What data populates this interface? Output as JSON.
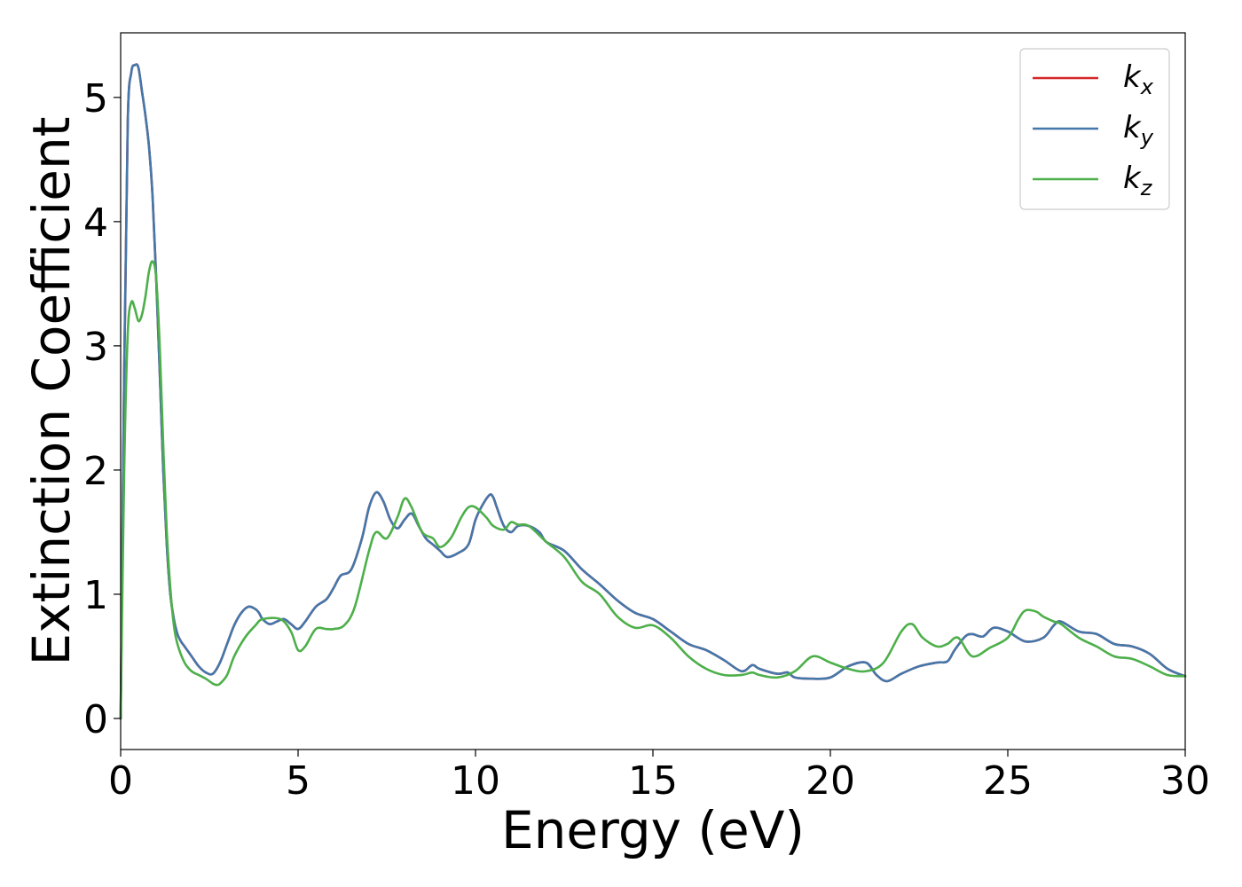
{
  "chart_data": {
    "type": "line",
    "xlabel": "Energy (eV)",
    "ylabel": "Extinction Coefficient",
    "xlim": [
      0,
      30
    ],
    "ylim": [
      -0.25,
      5.52
    ],
    "xticks": [
      "0",
      "5",
      "10",
      "15",
      "20",
      "25",
      "30"
    ],
    "yticks": [
      "0",
      "1",
      "2",
      "3",
      "4",
      "5"
    ],
    "grid": false,
    "legend_position": "top-right",
    "series": [
      {
        "name": "k_x",
        "legend_base": "k",
        "legend_sub": "x",
        "color": "#d62728",
        "x": [
          0,
          0.1,
          0.2,
          0.3,
          0.4,
          0.5,
          0.6,
          0.7,
          0.8,
          0.9,
          1.0,
          1.1,
          1.2,
          1.3,
          1.4,
          1.5,
          1.6,
          1.7,
          1.8,
          2.0,
          2.2,
          2.4,
          2.6,
          2.8,
          3.0,
          3.2,
          3.4,
          3.6,
          3.8,
          3.9,
          4.0,
          4.2,
          4.4,
          4.6,
          4.8,
          5.0,
          5.2,
          5.5,
          5.8,
          6.0,
          6.2,
          6.5,
          6.8,
          7.0,
          7.2,
          7.4,
          7.6,
          7.8,
          8.0,
          8.2,
          8.4,
          8.6,
          8.8,
          9.0,
          9.2,
          9.5,
          9.8,
          10.0,
          10.2,
          10.4,
          10.5,
          10.6,
          10.8,
          11.0,
          11.2,
          11.5,
          11.8,
          12.0,
          12.5,
          13.0,
          13.5,
          14.0,
          14.5,
          15.0,
          15.5,
          16.0,
          16.5,
          17.0,
          17.5,
          17.8,
          18.0,
          18.5,
          18.8,
          19.0,
          19.5,
          20.0,
          20.5,
          21.0,
          21.3,
          21.6,
          22.0,
          22.5,
          23.0,
          23.3,
          23.5,
          23.8,
          24.0,
          24.3,
          24.6,
          25.0,
          25.5,
          26.0,
          26.3,
          26.5,
          27.0,
          27.5,
          28.0,
          28.5,
          29.0,
          29.5,
          30.0
        ],
        "y": [
          0,
          2.8,
          4.8,
          5.2,
          5.26,
          5.24,
          5.05,
          4.85,
          4.6,
          4.2,
          3.55,
          2.8,
          2.0,
          1.4,
          1.0,
          0.8,
          0.68,
          0.62,
          0.58,
          0.5,
          0.42,
          0.37,
          0.36,
          0.45,
          0.6,
          0.75,
          0.85,
          0.9,
          0.88,
          0.85,
          0.8,
          0.76,
          0.78,
          0.8,
          0.76,
          0.72,
          0.78,
          0.9,
          0.96,
          1.05,
          1.15,
          1.2,
          1.45,
          1.7,
          1.82,
          1.75,
          1.6,
          1.53,
          1.6,
          1.65,
          1.55,
          1.45,
          1.4,
          1.35,
          1.3,
          1.33,
          1.4,
          1.6,
          1.72,
          1.8,
          1.78,
          1.7,
          1.55,
          1.5,
          1.55,
          1.55,
          1.5,
          1.42,
          1.35,
          1.2,
          1.08,
          0.95,
          0.85,
          0.8,
          0.7,
          0.6,
          0.55,
          0.47,
          0.38,
          0.43,
          0.4,
          0.36,
          0.37,
          0.33,
          0.32,
          0.33,
          0.42,
          0.45,
          0.35,
          0.3,
          0.36,
          0.42,
          0.45,
          0.46,
          0.55,
          0.66,
          0.68,
          0.66,
          0.73,
          0.7,
          0.62,
          0.65,
          0.75,
          0.78,
          0.7,
          0.68,
          0.6,
          0.58,
          0.52,
          0.4,
          0.34
        ]
      },
      {
        "name": "k_y",
        "legend_base": "k",
        "legend_sub": "y",
        "color": "#4477aa",
        "x": [
          0,
          0.1,
          0.2,
          0.3,
          0.4,
          0.5,
          0.6,
          0.7,
          0.8,
          0.9,
          1.0,
          1.1,
          1.2,
          1.3,
          1.4,
          1.5,
          1.6,
          1.7,
          1.8,
          2.0,
          2.2,
          2.4,
          2.6,
          2.8,
          3.0,
          3.2,
          3.4,
          3.6,
          3.8,
          3.9,
          4.0,
          4.2,
          4.4,
          4.6,
          4.8,
          5.0,
          5.2,
          5.5,
          5.8,
          6.0,
          6.2,
          6.5,
          6.8,
          7.0,
          7.2,
          7.4,
          7.6,
          7.8,
          8.0,
          8.2,
          8.4,
          8.6,
          8.8,
          9.0,
          9.2,
          9.5,
          9.8,
          10.0,
          10.2,
          10.4,
          10.5,
          10.6,
          10.8,
          11.0,
          11.2,
          11.5,
          11.8,
          12.0,
          12.5,
          13.0,
          13.5,
          14.0,
          14.5,
          15.0,
          15.5,
          16.0,
          16.5,
          17.0,
          17.5,
          17.8,
          18.0,
          18.5,
          18.8,
          19.0,
          19.5,
          20.0,
          20.5,
          21.0,
          21.3,
          21.6,
          22.0,
          22.5,
          23.0,
          23.3,
          23.5,
          23.8,
          24.0,
          24.3,
          24.6,
          25.0,
          25.5,
          26.0,
          26.3,
          26.5,
          27.0,
          27.5,
          28.0,
          28.5,
          29.0,
          29.5,
          30.0
        ],
        "y": [
          0,
          2.8,
          4.8,
          5.2,
          5.26,
          5.24,
          5.05,
          4.85,
          4.6,
          4.2,
          3.55,
          2.8,
          2.0,
          1.4,
          1.0,
          0.8,
          0.68,
          0.62,
          0.58,
          0.5,
          0.42,
          0.37,
          0.36,
          0.45,
          0.6,
          0.75,
          0.85,
          0.9,
          0.88,
          0.85,
          0.8,
          0.76,
          0.78,
          0.8,
          0.76,
          0.72,
          0.78,
          0.9,
          0.96,
          1.05,
          1.15,
          1.2,
          1.45,
          1.7,
          1.82,
          1.75,
          1.6,
          1.53,
          1.6,
          1.65,
          1.55,
          1.45,
          1.4,
          1.35,
          1.3,
          1.33,
          1.4,
          1.6,
          1.72,
          1.8,
          1.78,
          1.7,
          1.55,
          1.5,
          1.55,
          1.55,
          1.5,
          1.42,
          1.35,
          1.2,
          1.08,
          0.95,
          0.85,
          0.8,
          0.7,
          0.6,
          0.55,
          0.47,
          0.38,
          0.43,
          0.4,
          0.36,
          0.37,
          0.33,
          0.32,
          0.33,
          0.42,
          0.45,
          0.35,
          0.3,
          0.36,
          0.42,
          0.45,
          0.46,
          0.55,
          0.66,
          0.68,
          0.66,
          0.73,
          0.7,
          0.62,
          0.65,
          0.75,
          0.78,
          0.7,
          0.68,
          0.6,
          0.58,
          0.52,
          0.4,
          0.34
        ]
      },
      {
        "name": "k_z",
        "legend_base": "k",
        "legend_sub": "z",
        "color": "#4daf4a",
        "x": [
          0,
          0.1,
          0.2,
          0.3,
          0.4,
          0.5,
          0.6,
          0.7,
          0.8,
          0.9,
          1.0,
          1.1,
          1.2,
          1.3,
          1.4,
          1.5,
          1.6,
          1.8,
          2.0,
          2.2,
          2.4,
          2.6,
          2.7,
          2.8,
          3.0,
          3.2,
          3.5,
          3.8,
          4.0,
          4.5,
          4.8,
          5.0,
          5.2,
          5.5,
          5.8,
          6.0,
          6.3,
          6.6,
          7.0,
          7.2,
          7.5,
          7.8,
          8.0,
          8.2,
          8.5,
          8.8,
          9.0,
          9.3,
          9.6,
          9.8,
          10.0,
          10.3,
          10.5,
          10.8,
          11.0,
          11.2,
          11.5,
          12.0,
          12.5,
          13.0,
          13.5,
          14.0,
          14.5,
          15.0,
          15.5,
          16.0,
          16.5,
          17.0,
          17.5,
          17.8,
          18.0,
          18.5,
          19.0,
          19.5,
          20.0,
          20.5,
          21.0,
          21.5,
          22.0,
          22.3,
          22.6,
          23.0,
          23.3,
          23.6,
          24.0,
          24.5,
          25.0,
          25.3,
          25.5,
          25.8,
          26.0,
          26.3,
          26.5,
          27.0,
          27.5,
          28.0,
          28.5,
          29.0,
          29.5,
          30.0
        ],
        "y": [
          0,
          2.0,
          3.1,
          3.35,
          3.3,
          3.2,
          3.25,
          3.4,
          3.6,
          3.68,
          3.55,
          3.0,
          2.2,
          1.5,
          1.05,
          0.75,
          0.6,
          0.45,
          0.38,
          0.35,
          0.32,
          0.28,
          0.27,
          0.28,
          0.35,
          0.5,
          0.65,
          0.75,
          0.8,
          0.8,
          0.7,
          0.55,
          0.58,
          0.72,
          0.72,
          0.72,
          0.75,
          0.9,
          1.35,
          1.5,
          1.45,
          1.62,
          1.77,
          1.7,
          1.5,
          1.45,
          1.38,
          1.45,
          1.62,
          1.7,
          1.7,
          1.62,
          1.55,
          1.52,
          1.58,
          1.56,
          1.55,
          1.42,
          1.3,
          1.1,
          1.0,
          0.82,
          0.73,
          0.75,
          0.65,
          0.5,
          0.4,
          0.35,
          0.35,
          0.37,
          0.35,
          0.33,
          0.38,
          0.5,
          0.45,
          0.4,
          0.38,
          0.45,
          0.7,
          0.76,
          0.65,
          0.58,
          0.6,
          0.65,
          0.5,
          0.57,
          0.65,
          0.8,
          0.87,
          0.86,
          0.82,
          0.78,
          0.76,
          0.65,
          0.58,
          0.5,
          0.48,
          0.42,
          0.35,
          0.34
        ]
      }
    ]
  }
}
